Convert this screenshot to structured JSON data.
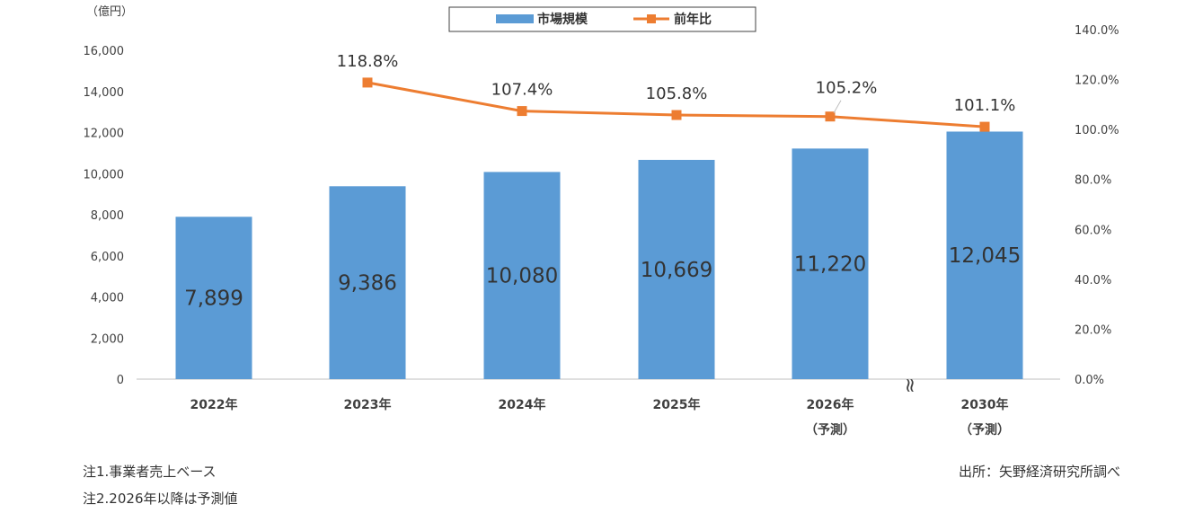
{
  "chart_data": {
    "type": "bar",
    "categories": [
      "2022年",
      "2023年",
      "2024年",
      "2025年",
      "2026年\n（予測）",
      "2030年\n（予測）"
    ],
    "series": [
      {
        "name": "市場規模",
        "type": "bar",
        "axis": "left",
        "color": "#5B9BD5",
        "values": [
          7899,
          9386,
          10080,
          10669,
          11220,
          12045
        ],
        "labels": [
          "7,899",
          "9,386",
          "10,080",
          "10,669",
          "11,220",
          "12,045"
        ]
      },
      {
        "name": "前年比",
        "type": "line",
        "axis": "right",
        "color": "#ED7D31",
        "values": [
          null,
          118.8,
          107.4,
          105.8,
          105.2,
          101.1
        ],
        "labels": [
          "",
          "118.8%",
          "107.4%",
          "105.8%",
          "105.2%",
          "101.1%"
        ]
      }
    ],
    "y_left": {
      "unit_label": "（億円）",
      "range": [
        0,
        16000
      ],
      "ticks": [
        0,
        2000,
        4000,
        6000,
        8000,
        10000,
        12000,
        14000,
        16000
      ],
      "tick_labels": [
        "0",
        "2,000",
        "4,000",
        "6,000",
        "8,000",
        "10,000",
        "12,000",
        "14,000",
        "16,000"
      ]
    },
    "y_right": {
      "range": [
        0,
        140
      ],
      "ticks": [
        0,
        20,
        40,
        60,
        80,
        100,
        120,
        140
      ],
      "tick_labels": [
        "0.0%",
        "20.0%",
        "40.0%",
        "60.0%",
        "80.0%",
        "100.0%",
        "120.0%",
        "140.0%"
      ]
    },
    "axis_break_symbol": "≈",
    "grid": false,
    "legend": {
      "position": "top-center",
      "items": [
        "市場規模",
        "前年比"
      ]
    }
  },
  "notes": {
    "note1": "注1.事業者売上ベース",
    "note2": "注2.2026年以降は予測値",
    "source": "出所：矢野経済研究所調べ"
  }
}
